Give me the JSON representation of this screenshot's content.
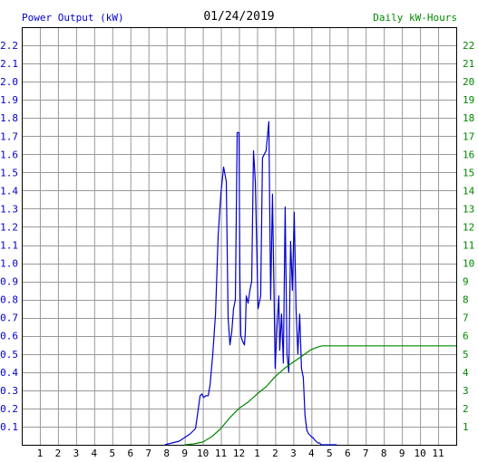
{
  "chart_data": {
    "type": "line",
    "title": "01/24/2019",
    "left_axis_label": "Power Output (kW)",
    "right_axis_label": "Daily kW-Hours",
    "colors": {
      "power": "#0000cc",
      "energy": "#008800",
      "grid": "#999999",
      "left_label": "#0000cc",
      "right_label": "#008800",
      "x_ticks": "#000000"
    },
    "x_ticks": [
      "1",
      "2",
      "3",
      "4",
      "5",
      "6",
      "7",
      "8",
      "9",
      "10",
      "11",
      "12",
      "1",
      "2",
      "3",
      "4",
      "5",
      "6",
      "7",
      "8",
      "9",
      "10",
      "11"
    ],
    "y_left_ticks": [
      "0.1",
      "0.2",
      "0.3",
      "0.4",
      "0.5",
      "0.6",
      "0.7",
      "0.8",
      "0.9",
      "1.0",
      "1.1",
      "1.2",
      "1.3",
      "1.4",
      "1.5",
      "1.6",
      "1.7",
      "1.8",
      "1.9",
      "2.0",
      "2.1",
      "2.2"
    ],
    "y_right_ticks": [
      "1",
      "2",
      "3",
      "4",
      "5",
      "6",
      "7",
      "8",
      "9",
      "10",
      "11",
      "12",
      "13",
      "14",
      "15",
      "16",
      "17",
      "18",
      "19",
      "20",
      "21",
      "22"
    ],
    "xlim": [
      0,
      24
    ],
    "ylim_left": [
      0,
      2.3
    ],
    "ylim_right": [
      0,
      23
    ],
    "series": [
      {
        "name": "Power Output (kW)",
        "axis": "left",
        "x": [
          7.9,
          8.3,
          8.7,
          9.0,
          9.3,
          9.6,
          9.85,
          9.95,
          10.05,
          10.15,
          10.3,
          10.4,
          10.55,
          10.7,
          10.85,
          11.0,
          11.15,
          11.3,
          11.4,
          11.5,
          11.6,
          11.7,
          11.8,
          11.9,
          12.0,
          12.05,
          12.1,
          12.2,
          12.3,
          12.35,
          12.4,
          12.5,
          12.6,
          12.7,
          12.8,
          12.9,
          13.05,
          13.2,
          13.3,
          13.5,
          13.65,
          13.75,
          13.85,
          14.0,
          14.1,
          14.2,
          14.25,
          14.35,
          14.45,
          14.55,
          14.65,
          14.75,
          14.85,
          14.95,
          15.05,
          15.15,
          15.25,
          15.35,
          15.45,
          15.55,
          15.65,
          15.75,
          15.85,
          15.95,
          16.05,
          16.1,
          16.15,
          16.25,
          16.35,
          16.45,
          16.55,
          16.7,
          16.9,
          17.2,
          17.4
        ],
        "y": [
          0.0,
          0.01,
          0.02,
          0.04,
          0.06,
          0.09,
          0.27,
          0.28,
          0.26,
          0.27,
          0.27,
          0.33,
          0.5,
          0.72,
          1.15,
          1.38,
          1.53,
          1.45,
          0.7,
          0.55,
          0.62,
          0.75,
          0.8,
          1.72,
          1.72,
          0.92,
          0.6,
          0.57,
          0.55,
          0.62,
          0.82,
          0.78,
          0.85,
          0.9,
          1.62,
          1.45,
          0.75,
          0.82,
          1.58,
          1.62,
          1.78,
          0.8,
          1.38,
          0.42,
          0.65,
          0.82,
          0.52,
          0.72,
          0.45,
          1.31,
          0.5,
          0.4,
          1.12,
          0.85,
          1.28,
          0.75,
          0.5,
          0.72,
          0.42,
          0.37,
          0.16,
          0.08,
          0.06,
          0.05,
          0.04,
          0.04,
          0.03,
          0.02,
          0.01,
          0.01,
          0.0,
          0.0,
          0.0,
          0.0,
          0.0
        ]
      },
      {
        "name": "Daily kW-Hours",
        "axis": "right",
        "x": [
          9.0,
          9.5,
          10.0,
          10.5,
          11.0,
          11.5,
          12.0,
          12.5,
          13.0,
          13.5,
          14.0,
          14.5,
          15.0,
          15.5,
          16.0,
          16.4,
          16.6,
          16.8,
          17.0,
          24.0
        ],
        "y": [
          0.0,
          0.05,
          0.15,
          0.45,
          0.9,
          1.5,
          2.0,
          2.35,
          2.8,
          3.2,
          3.75,
          4.2,
          4.55,
          4.9,
          5.25,
          5.4,
          5.45,
          5.45,
          5.45,
          5.45
        ]
      }
    ]
  }
}
